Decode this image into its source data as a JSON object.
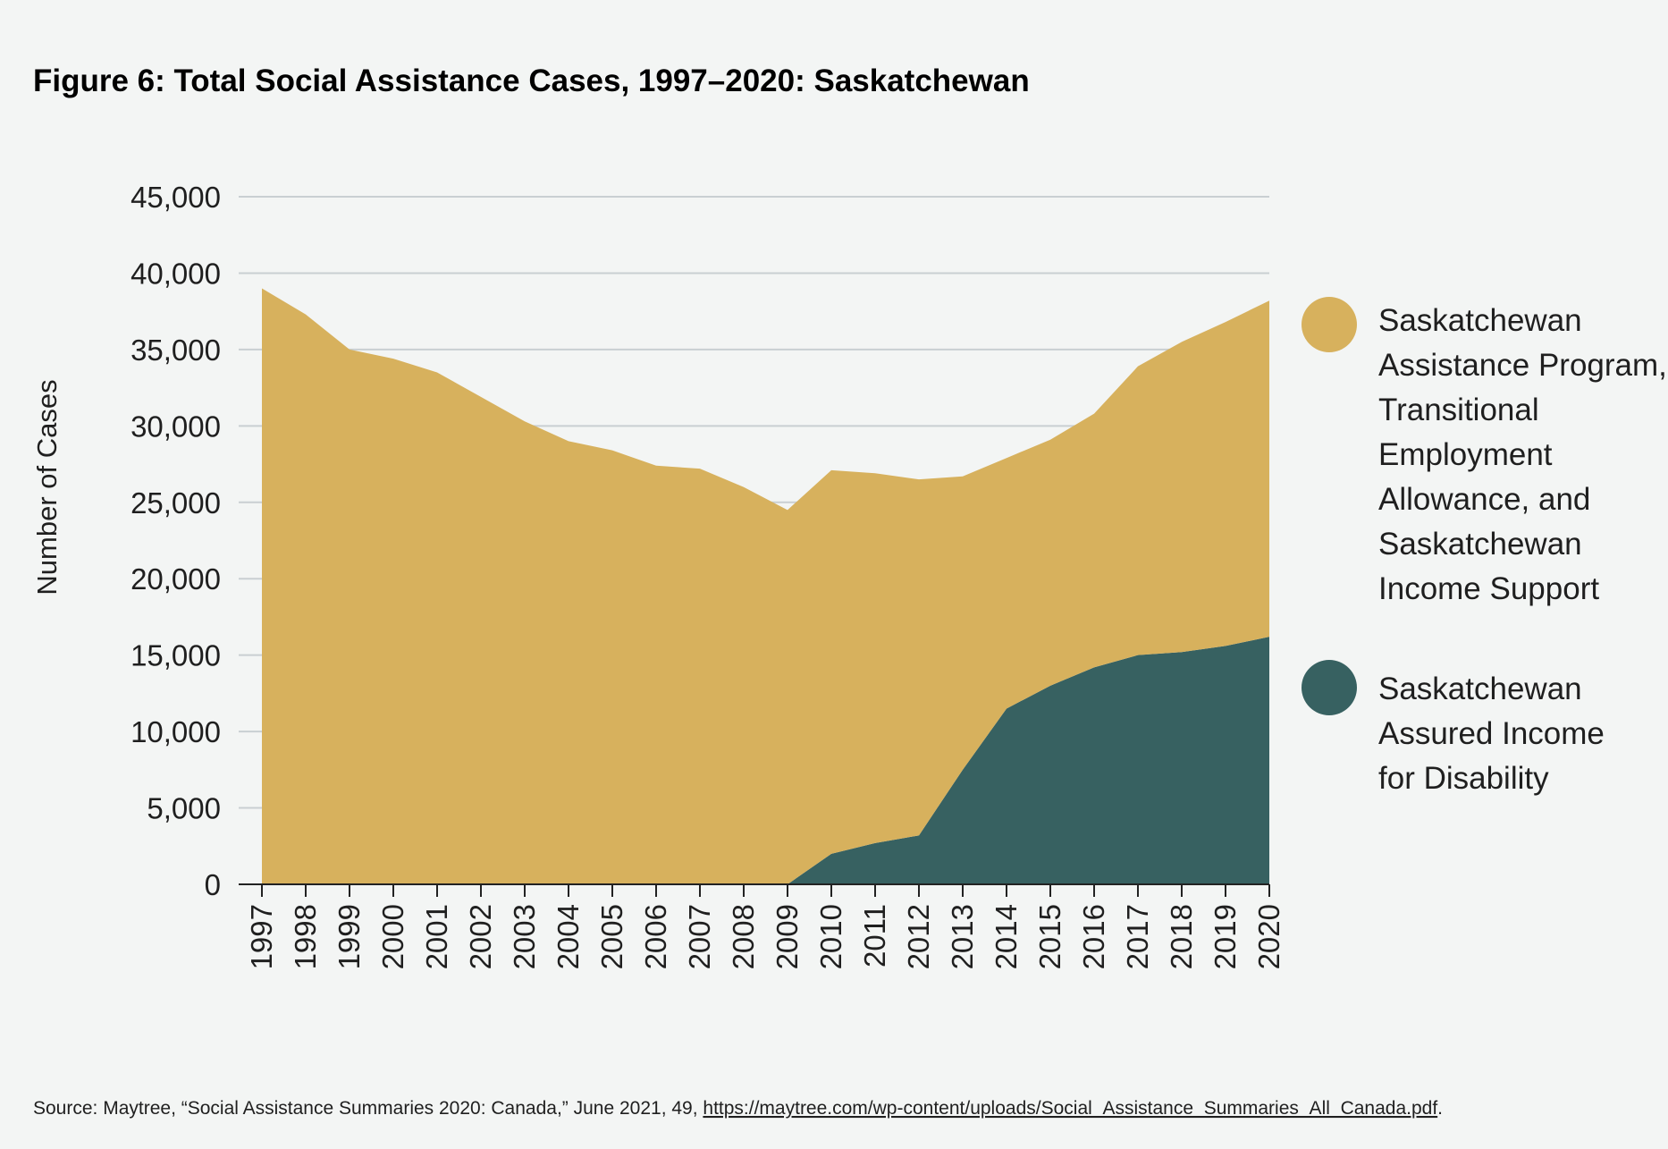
{
  "chart_data": {
    "type": "area",
    "stacked": true,
    "title": "Figure 6: Total Social Assistance Cases, 1997–2020: Saskatchewan",
    "xlabel": "",
    "ylabel": "Number of Cases",
    "ylim": [
      0,
      45000
    ],
    "yticks": [
      0,
      5000,
      10000,
      15000,
      20000,
      25000,
      30000,
      35000,
      40000,
      45000
    ],
    "ytick_labels": [
      "0",
      "5,000",
      "10,000",
      "15,000",
      "20,000",
      "25,000",
      "30,000",
      "35,000",
      "40,000",
      "45,000"
    ],
    "categories": [
      "1997",
      "1998",
      "1999",
      "2000",
      "2001",
      "2002",
      "2003",
      "2004",
      "2005",
      "2006",
      "2007",
      "2008",
      "2009",
      "2010",
      "2011",
      "2012",
      "2013",
      "2014",
      "2015",
      "2016",
      "2017",
      "2018",
      "2019",
      "2020"
    ],
    "grid": true,
    "legend_position": "right",
    "series": [
      {
        "name": "Saskatchewan Assured Income for Disability",
        "legend_lines": [
          "Saskatchewan",
          "Assured Income",
          "for Disability"
        ],
        "color": "#376161",
        "values": [
          0,
          0,
          0,
          0,
          0,
          0,
          0,
          0,
          0,
          0,
          0,
          0,
          0,
          2000,
          2700,
          3200,
          7500,
          11500,
          13000,
          14200,
          15000,
          15200,
          15600,
          16200
        ]
      },
      {
        "name": "Saskatchewan Assistance Program, Transitional Employment Allowance, and Saskatchewan Income Support",
        "legend_lines": [
          "Saskatchewan",
          "Assistance Program,",
          "Transitional",
          "Employment",
          "Allowance, and",
          "Saskatchewan",
          "Income Support"
        ],
        "color": "#d7b15d",
        "values": [
          39000,
          37300,
          35000,
          34400,
          33500,
          31900,
          30300,
          29000,
          28400,
          27400,
          27200,
          26000,
          24500,
          25100,
          24200,
          23300,
          19200,
          16400,
          16100,
          16600,
          18900,
          20300,
          21200,
          22000
        ]
      }
    ]
  },
  "source": {
    "prefix": "Source: Maytree, “Social Assistance Summaries 2020: Canada,” June 2021, 49, ",
    "url": "https://maytree.com/wp-content/uploads/Social_Assistance_Summaries_All_Canada.pdf",
    "suffix": "."
  },
  "colors": {
    "background": "#f3f5f4",
    "grid": "#c9cfd2",
    "axis": "#222222"
  }
}
